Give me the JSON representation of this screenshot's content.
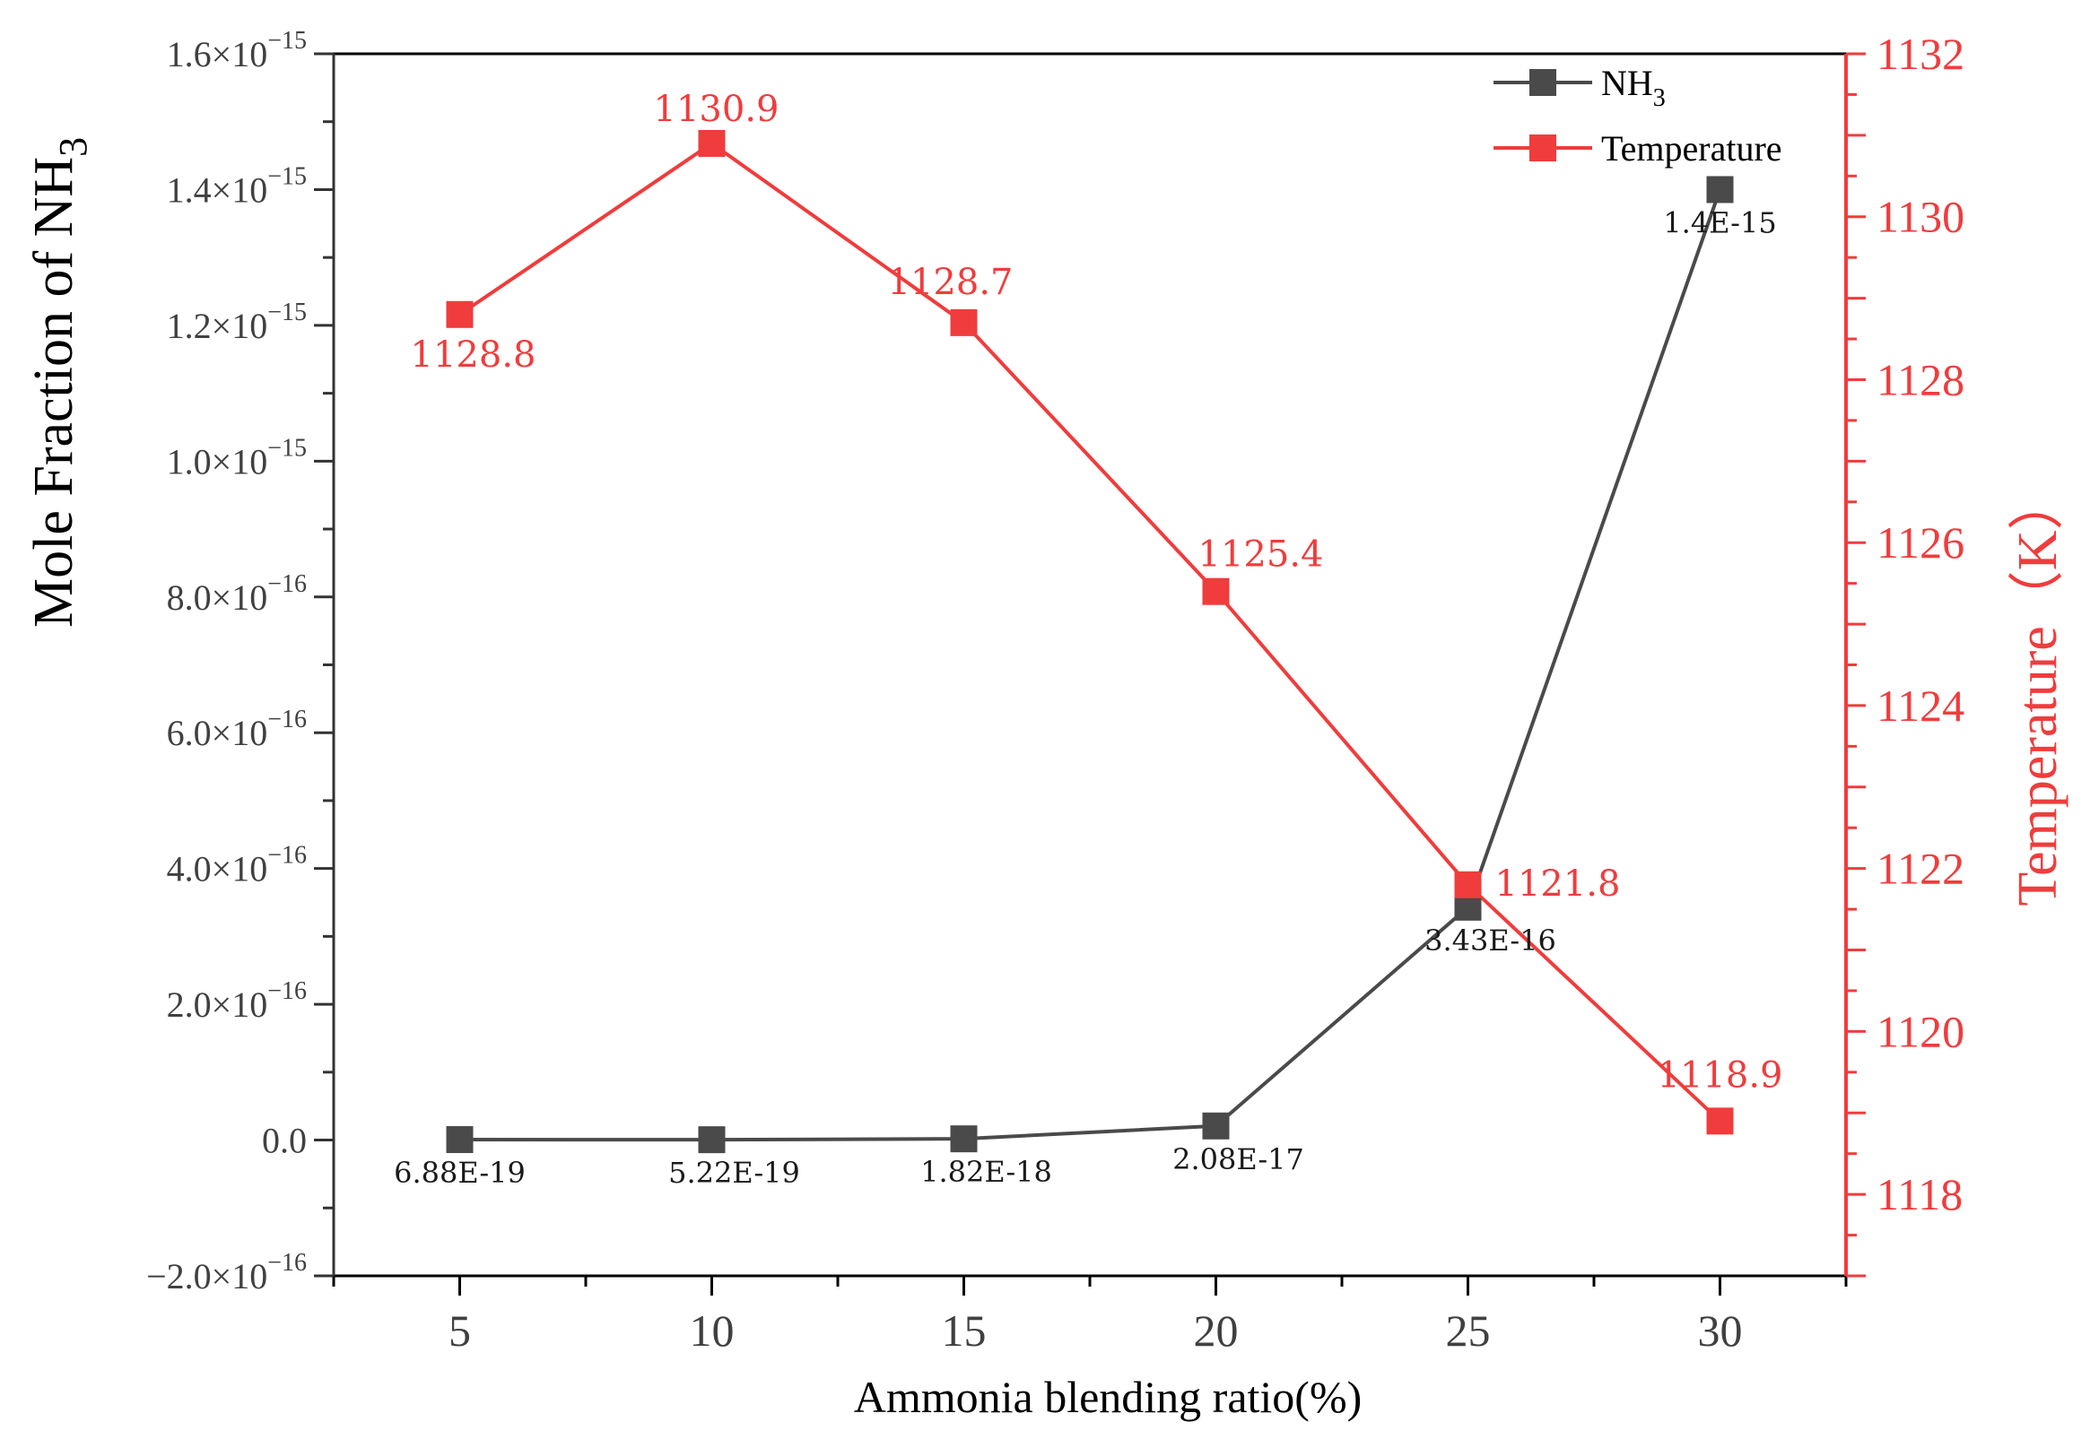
{
  "chart_data": {
    "type": "line",
    "x": [
      5,
      10,
      15,
      20,
      25,
      30
    ],
    "xlabel": "Ammonia blending ratio(%)",
    "xlim": [
      2.5,
      32.5
    ],
    "x_ticks": [
      "5",
      "10",
      "15",
      "20",
      "25",
      "30"
    ],
    "y_left": {
      "label_text": "Mole Fraction of NH",
      "label_sub": "3",
      "lim": [
        -2e-16,
        1.6e-15
      ],
      "ticks": [
        {
          "value": -2e-16,
          "mantissa": "−2.0×10",
          "exp": "−16"
        },
        {
          "value": 0,
          "mantissa": "0.0",
          "exp": ""
        },
        {
          "value": 2e-16,
          "mantissa": "2.0×10",
          "exp": "−16"
        },
        {
          "value": 4e-16,
          "mantissa": "4.0×10",
          "exp": "−16"
        },
        {
          "value": 6e-16,
          "mantissa": "6.0×10",
          "exp": "−16"
        },
        {
          "value": 8e-16,
          "mantissa": "8.0×10",
          "exp": "−16"
        },
        {
          "value": 1e-15,
          "mantissa": "1.0×10",
          "exp": "−15"
        },
        {
          "value": 1.2e-15,
          "mantissa": "1.2×10",
          "exp": "−15"
        },
        {
          "value": 1.4e-15,
          "mantissa": "1.4×10",
          "exp": "−15"
        },
        {
          "value": 1.6e-15,
          "mantissa": "1.6×10",
          "exp": "−15"
        }
      ]
    },
    "y_right": {
      "label": "Temperature（K）",
      "lim": [
        1117,
        1132
      ],
      "ticks": [
        "1118",
        "1120",
        "1122",
        "1124",
        "1126",
        "1128",
        "1130",
        "1132"
      ]
    },
    "series": [
      {
        "name": "NH",
        "name_sub": "3",
        "axis": "left",
        "color": "#4a4a4a",
        "values": [
          6.88e-19,
          5.22e-19,
          1.82e-18,
          2.08e-17,
          3.43e-16,
          1.4e-15
        ],
        "labels": [
          "6.88E-19",
          "5.22E-19",
          "1.82E-18",
          "2.08E-17",
          "3.43E-16",
          "1.4E-15"
        ]
      },
      {
        "name": "Temperature",
        "axis": "right",
        "color": "#f03c3c",
        "values": [
          1128.8,
          1130.9,
          1128.7,
          1125.4,
          1121.8,
          1118.9
        ],
        "labels": [
          "1128.8",
          "1130.9",
          "1128.7",
          "1125.4",
          "1121.8",
          "1118.9"
        ]
      }
    ],
    "legend_position": "top-right"
  }
}
